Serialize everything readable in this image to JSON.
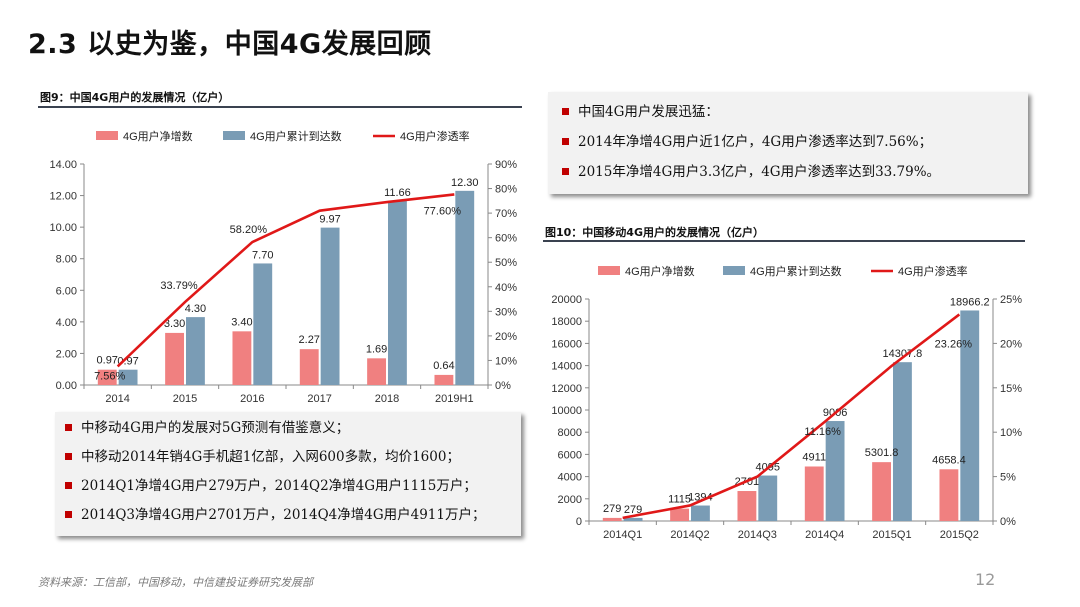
{
  "slide": {
    "title": "2.3  以史为鉴，中国4G发展回顾",
    "source": "资料来源：工信部，中国移动，中信建投证券研究发展部",
    "page_number": "12"
  },
  "colors": {
    "net_add": "#f08080",
    "cumulative": "#7a9cb5",
    "penetration": "#e01818",
    "bullet": "#c00000"
  },
  "top_callout": {
    "items": [
      "中国4G用户发展迅猛：",
      "2014年净增4G用户近1亿户，4G用户渗透率达到7.56%；",
      "2015年净增4G用户3.3亿户，4G用户渗透率达到33.79%。"
    ]
  },
  "bottom_callout": {
    "items": [
      "中移动4G用户的发展对5G预测有借鉴意义；",
      "中移动2014年销4G手机超1亿部，入网600多款，均价1600；",
      "2014Q1净增4G用户279万户，2014Q2净增4G用户1115万户；",
      "2014Q3净增4G用户2701万户，2014Q4净增4G用户4911万户；"
    ]
  },
  "chart_data": [
    {
      "id": "fig9",
      "type": "bar",
      "title": "图9：中国4G用户的发展情况（亿户）",
      "categories": [
        "2014",
        "2015",
        "2016",
        "2017",
        "2018",
        "2019H1"
      ],
      "legend": [
        "4G用户净增数",
        "4G用户累计到达数",
        "4G用户渗透率"
      ],
      "series": [
        {
          "name": "4G用户净增数",
          "kind": "bar",
          "axis": "left",
          "values": [
            0.97,
            3.3,
            3.4,
            2.27,
            1.69,
            0.64
          ],
          "labels": [
            "0.97",
            "3.30",
            "3.40",
            "2.27",
            "1.69",
            "0.64"
          ]
        },
        {
          "name": "4G用户累计到达数",
          "kind": "bar",
          "axis": "left",
          "values": [
            0.97,
            4.3,
            7.7,
            9.97,
            11.66,
            12.3
          ],
          "labels": [
            "0.97",
            "4.30",
            "7.70",
            "9.97",
            "11.66",
            "12.30"
          ]
        },
        {
          "name": "4G用户渗透率",
          "kind": "line",
          "axis": "right",
          "values": [
            7.56,
            33.79,
            58.2,
            71.0,
            74.5,
            77.6
          ],
          "labels": [
            "7.56%",
            "33.79%",
            "58.20%",
            "",
            "",
            "77.60%"
          ]
        }
      ],
      "left_axis": {
        "min": 0,
        "max": 14,
        "ticks": [
          "0.00",
          "2.00",
          "4.00",
          "6.00",
          "8.00",
          "10.00",
          "12.00",
          "14.00"
        ]
      },
      "right_axis": {
        "min": 0,
        "max": 90,
        "ticks": [
          "0%",
          "10%",
          "20%",
          "30%",
          "40%",
          "50%",
          "60%",
          "70%",
          "80%",
          "90%"
        ]
      }
    },
    {
      "id": "fig10",
      "type": "bar",
      "title": "图10：中国移动4G用户的发展情况（亿户）",
      "categories": [
        "2014Q1",
        "2014Q2",
        "2014Q3",
        "2014Q4",
        "2015Q1",
        "2015Q2"
      ],
      "legend": [
        "4G用户净增数",
        "4G用户累计到达数",
        "4G用户渗透率"
      ],
      "series": [
        {
          "name": "4G用户净增数",
          "kind": "bar",
          "axis": "left",
          "values": [
            279,
            1115,
            2701,
            4911,
            5301.8,
            4658.4
          ],
          "labels": [
            "279",
            "1115",
            "2701",
            "4911",
            "5301.8",
            "4658.4"
          ]
        },
        {
          "name": "4G用户累计到达数",
          "kind": "bar",
          "axis": "left",
          "values": [
            279,
            1394,
            4095,
            9006,
            14307.8,
            18966.2
          ],
          "labels": [
            "279",
            "1394",
            "4095",
            "9006",
            "14307.8",
            "18966.2"
          ]
        },
        {
          "name": "4G用户渗透率",
          "kind": "line",
          "axis": "right",
          "values": [
            0.35,
            1.75,
            5.0,
            11.16,
            17.5,
            23.26
          ],
          "labels": [
            "",
            "",
            "",
            "11.16%",
            "",
            "23.26%"
          ]
        }
      ],
      "left_axis": {
        "min": 0,
        "max": 20000,
        "ticks": [
          "0",
          "2000",
          "4000",
          "6000",
          "8000",
          "10000",
          "12000",
          "14000",
          "16000",
          "18000",
          "20000"
        ]
      },
      "right_axis": {
        "min": 0,
        "max": 25,
        "ticks": [
          "0%",
          "5%",
          "10%",
          "15%",
          "20%",
          "25%"
        ]
      }
    }
  ]
}
